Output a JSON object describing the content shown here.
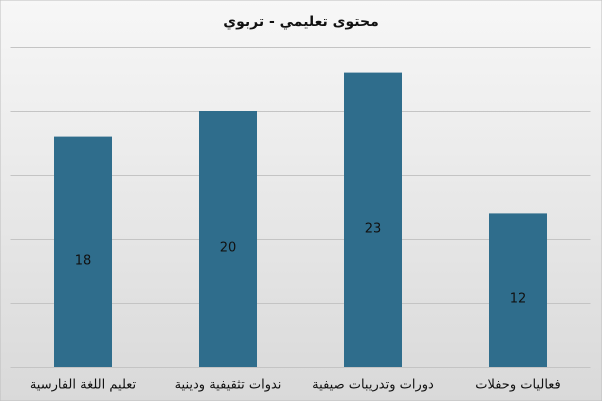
{
  "chart_data": {
    "type": "bar",
    "title": "محتوى تعليمي - تربوي",
    "categories": [
      "تعليم اللغة الفارسية",
      "ندوات تثقيفية ودينية",
      "دورات وتدريبات صيفية",
      "فعاليات وحفلات"
    ],
    "values": [
      18,
      20,
      23,
      12
    ],
    "color": "#2f6d8c",
    "ylim": [
      0,
      25
    ],
    "yticks": [
      0,
      5,
      10,
      15,
      20,
      25
    ],
    "grid": true
  }
}
